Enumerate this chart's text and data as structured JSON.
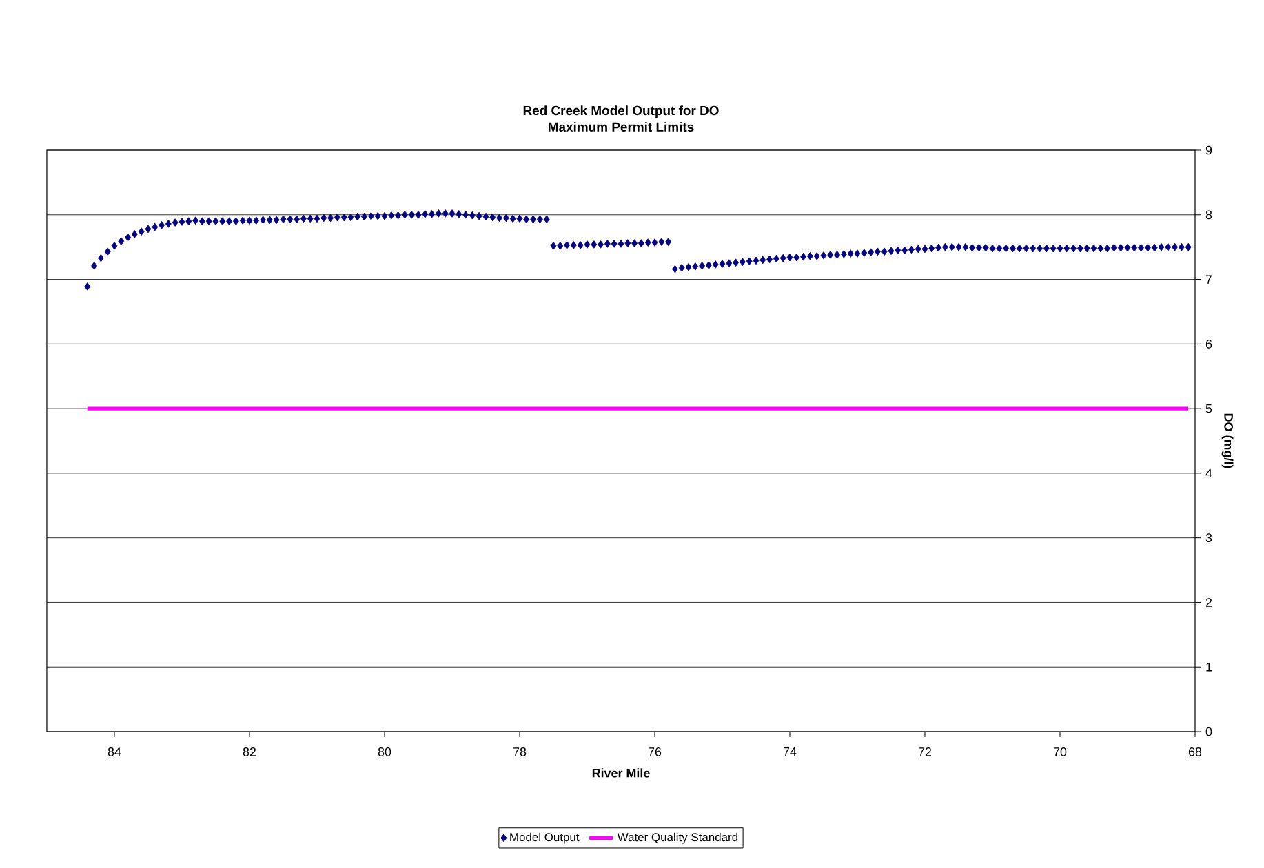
{
  "chart_data": {
    "type": "scatter",
    "title": "Red Creek Model Output for DO",
    "subtitle": "Maximum Permit Limits",
    "xlabel": "River Mile",
    "ylabel": "DO (mg/l)",
    "xlim": [
      85,
      68
    ],
    "xticks": [
      84,
      82,
      80,
      78,
      76,
      74,
      72,
      70,
      68
    ],
    "ylim": [
      0,
      9
    ],
    "yticks": [
      0,
      1,
      2,
      3,
      4,
      5,
      6,
      7,
      8,
      9
    ],
    "grid": "y",
    "legend": "bottom",
    "series": [
      {
        "name": "Model Output",
        "marker": "diamond",
        "color": "#000080",
        "x": [
          84.4,
          84.3,
          84.2,
          84.1,
          84.0,
          83.9,
          83.8,
          83.7,
          83.6,
          83.5,
          83.4,
          83.3,
          83.2,
          83.1,
          83.0,
          82.9,
          82.8,
          82.7,
          82.6,
          82.5,
          82.4,
          82.3,
          82.2,
          82.1,
          82.0,
          81.9,
          81.8,
          81.7,
          81.6,
          81.5,
          81.4,
          81.3,
          81.2,
          81.1,
          81.0,
          80.9,
          80.8,
          80.7,
          80.6,
          80.5,
          80.4,
          80.3,
          80.2,
          80.1,
          80.0,
          79.9,
          79.8,
          79.7,
          79.6,
          79.5,
          79.4,
          79.3,
          79.2,
          79.1,
          79.0,
          78.9,
          78.8,
          78.7,
          78.6,
          78.5,
          78.4,
          78.3,
          78.2,
          78.1,
          78.0,
          77.9,
          77.8,
          77.7,
          77.6,
          77.5,
          77.4,
          77.3,
          77.2,
          77.1,
          77.0,
          76.9,
          76.8,
          76.7,
          76.6,
          76.5,
          76.4,
          76.3,
          76.2,
          76.1,
          76.0,
          75.9,
          75.8,
          75.7,
          75.6,
          75.5,
          75.4,
          75.3,
          75.2,
          75.1,
          75.0,
          74.9,
          74.8,
          74.7,
          74.6,
          74.5,
          74.4,
          74.3,
          74.2,
          74.1,
          74.0,
          73.9,
          73.8,
          73.7,
          73.6,
          73.5,
          73.4,
          73.3,
          73.2,
          73.1,
          73.0,
          72.9,
          72.8,
          72.7,
          72.6,
          72.5,
          72.4,
          72.3,
          72.2,
          72.1,
          72.0,
          71.9,
          71.8,
          71.7,
          71.6,
          71.5,
          71.4,
          71.3,
          71.2,
          71.1,
          71.0,
          70.9,
          70.8,
          70.7,
          70.6,
          70.5,
          70.4,
          70.3,
          70.2,
          70.1,
          70.0,
          69.9,
          69.8,
          69.7,
          69.6,
          69.5,
          69.4,
          69.3,
          69.2,
          69.1,
          69.0,
          68.9,
          68.8,
          68.7,
          68.6,
          68.5,
          68.4,
          68.3,
          68.2,
          68.1
        ],
        "values": [
          6.89,
          7.21,
          7.33,
          7.43,
          7.52,
          7.59,
          7.65,
          7.7,
          7.74,
          7.78,
          7.81,
          7.84,
          7.86,
          7.88,
          7.89,
          7.9,
          7.91,
          7.9,
          7.9,
          7.9,
          7.9,
          7.9,
          7.9,
          7.91,
          7.91,
          7.91,
          7.92,
          7.92,
          7.92,
          7.93,
          7.93,
          7.93,
          7.94,
          7.94,
          7.94,
          7.95,
          7.95,
          7.96,
          7.96,
          7.96,
          7.97,
          7.97,
          7.98,
          7.98,
          7.98,
          7.99,
          7.99,
          8.0,
          8.0,
          8.0,
          8.01,
          8.01,
          8.02,
          8.02,
          8.02,
          8.01,
          8.0,
          7.99,
          7.98,
          7.97,
          7.96,
          7.95,
          7.95,
          7.94,
          7.94,
          7.93,
          7.93,
          7.93,
          7.93,
          7.52,
          7.52,
          7.53,
          7.53,
          7.53,
          7.54,
          7.54,
          7.54,
          7.55,
          7.55,
          7.55,
          7.56,
          7.56,
          7.56,
          7.57,
          7.57,
          7.58,
          7.58,
          7.16,
          7.18,
          7.19,
          7.2,
          7.21,
          7.22,
          7.23,
          7.24,
          7.25,
          7.26,
          7.27,
          7.28,
          7.29,
          7.3,
          7.31,
          7.32,
          7.33,
          7.34,
          7.34,
          7.35,
          7.36,
          7.36,
          7.37,
          7.38,
          7.38,
          7.39,
          7.4,
          7.4,
          7.41,
          7.42,
          7.43,
          7.43,
          7.44,
          7.45,
          7.45,
          7.46,
          7.47,
          7.47,
          7.48,
          7.49,
          7.5,
          7.5,
          7.5,
          7.5,
          7.49,
          7.49,
          7.49,
          7.48,
          7.48,
          7.48,
          7.48,
          7.48,
          7.48,
          7.48,
          7.48,
          7.48,
          7.48,
          7.48,
          7.48,
          7.48,
          7.48,
          7.48,
          7.48,
          7.48,
          7.48,
          7.49,
          7.49,
          7.49,
          7.49,
          7.49,
          7.49,
          7.49,
          7.5,
          7.5,
          7.5,
          7.5,
          7.5
        ]
      },
      {
        "name": "Water Quality Standard",
        "type": "line",
        "color": "#ff00ff",
        "x": [
          84.4,
          68.1
        ],
        "values": [
          5,
          5
        ]
      }
    ]
  }
}
